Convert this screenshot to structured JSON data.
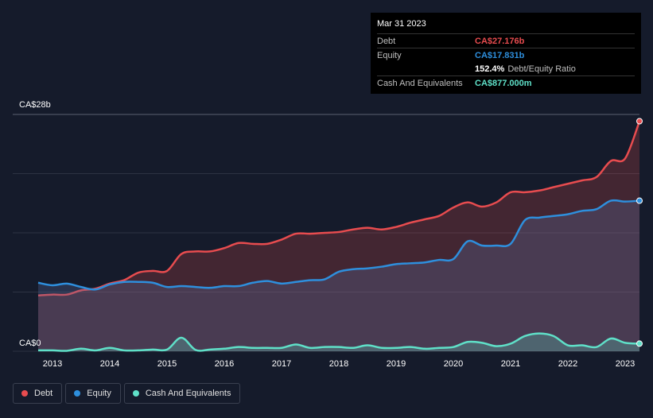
{
  "tooltip": {
    "date": "Mar 31 2023",
    "debt_label": "Debt",
    "debt_value": "CA$27.176b",
    "equity_label": "Equity",
    "equity_value": "CA$17.831b",
    "ratio_value": "152.4%",
    "ratio_label": "Debt/Equity Ratio",
    "cash_label": "Cash And Equivalents",
    "cash_value": "CA$877.000m"
  },
  "legend": {
    "debt": "Debt",
    "equity": "Equity",
    "cash": "Cash And Equivalents"
  },
  "colors": {
    "debt": "#e84c4f",
    "equity": "#2e8fdd",
    "cash": "#5fe0c8",
    "background": "#151b2b"
  },
  "chart_data": {
    "type": "area",
    "y_unit": "CA$ billions",
    "ylim": [
      0,
      28
    ],
    "y_tick_labels": [
      "CA$28b",
      "CA$0"
    ],
    "x_tick_labels": [
      "2013",
      "2014",
      "2015",
      "2016",
      "2017",
      "2018",
      "2019",
      "2020",
      "2021",
      "2022",
      "2023"
    ],
    "x_range": [
      2012.75,
      2023.25
    ],
    "grid": true,
    "legend_position": "bottom-left",
    "series": [
      {
        "name": "Debt",
        "x": [
          2012.75,
          2013.0,
          2013.25,
          2013.5,
          2013.75,
          2014.0,
          2014.25,
          2014.5,
          2014.75,
          2015.0,
          2015.25,
          2015.5,
          2015.75,
          2016.0,
          2016.25,
          2016.5,
          2016.75,
          2017.0,
          2017.25,
          2017.5,
          2017.75,
          2018.0,
          2018.25,
          2018.5,
          2018.75,
          2019.0,
          2019.25,
          2019.5,
          2019.75,
          2020.0,
          2020.25,
          2020.5,
          2020.75,
          2021.0,
          2021.25,
          2021.5,
          2021.75,
          2022.0,
          2022.25,
          2022.5,
          2022.75,
          2023.0,
          2023.25
        ],
        "values": [
          6.6,
          6.7,
          6.7,
          7.2,
          7.4,
          8.0,
          8.4,
          9.3,
          9.5,
          9.5,
          11.5,
          11.8,
          11.8,
          12.2,
          12.8,
          12.7,
          12.7,
          13.2,
          13.9,
          13.9,
          14.0,
          14.1,
          14.4,
          14.6,
          14.4,
          14.7,
          15.2,
          15.6,
          16.0,
          17.0,
          17.6,
          17.1,
          17.6,
          18.8,
          18.8,
          19.0,
          19.4,
          19.8,
          20.2,
          20.6,
          22.5,
          22.8,
          27.2
        ]
      },
      {
        "name": "Equity",
        "x": [
          2012.75,
          2013.0,
          2013.25,
          2013.5,
          2013.75,
          2014.0,
          2014.25,
          2014.5,
          2014.75,
          2015.0,
          2015.25,
          2015.5,
          2015.75,
          2016.0,
          2016.25,
          2016.5,
          2016.75,
          2017.0,
          2017.25,
          2017.5,
          2017.75,
          2018.0,
          2018.25,
          2018.5,
          2018.75,
          2019.0,
          2019.25,
          2019.5,
          2019.75,
          2020.0,
          2020.25,
          2020.5,
          2020.75,
          2021.0,
          2021.25,
          2021.5,
          2021.75,
          2022.0,
          2022.25,
          2022.5,
          2022.75,
          2023.0,
          2023.25
        ],
        "values": [
          8.1,
          7.8,
          8.0,
          7.6,
          7.3,
          7.9,
          8.2,
          8.2,
          8.1,
          7.6,
          7.7,
          7.6,
          7.5,
          7.7,
          7.7,
          8.1,
          8.3,
          8.0,
          8.2,
          8.4,
          8.5,
          9.4,
          9.7,
          9.8,
          10.0,
          10.3,
          10.4,
          10.5,
          10.8,
          10.9,
          13.0,
          12.5,
          12.5,
          12.7,
          15.5,
          15.8,
          16.0,
          16.2,
          16.6,
          16.8,
          17.8,
          17.7,
          17.8
        ]
      },
      {
        "name": "Cash And Equivalents",
        "x": [
          2012.75,
          2013.0,
          2013.25,
          2013.5,
          2013.75,
          2014.0,
          2014.25,
          2014.5,
          2014.75,
          2015.0,
          2015.25,
          2015.5,
          2015.75,
          2016.0,
          2016.25,
          2016.5,
          2016.75,
          2017.0,
          2017.25,
          2017.5,
          2017.75,
          2018.0,
          2018.25,
          2018.5,
          2018.75,
          2019.0,
          2019.25,
          2019.5,
          2019.75,
          2020.0,
          2020.25,
          2020.5,
          2020.75,
          2021.0,
          2021.25,
          2021.5,
          2021.75,
          2022.0,
          2022.25,
          2022.5,
          2022.75,
          2023.0,
          2023.25
        ],
        "values": [
          0.1,
          0.1,
          0.05,
          0.3,
          0.1,
          0.4,
          0.1,
          0.1,
          0.2,
          0.2,
          1.6,
          0.15,
          0.2,
          0.3,
          0.5,
          0.4,
          0.4,
          0.4,
          0.8,
          0.4,
          0.5,
          0.5,
          0.4,
          0.7,
          0.4,
          0.4,
          0.5,
          0.3,
          0.4,
          0.5,
          1.1,
          1.0,
          0.6,
          0.9,
          1.8,
          2.1,
          1.8,
          0.7,
          0.7,
          0.5,
          1.5,
          1.0,
          0.9
        ]
      }
    ]
  }
}
